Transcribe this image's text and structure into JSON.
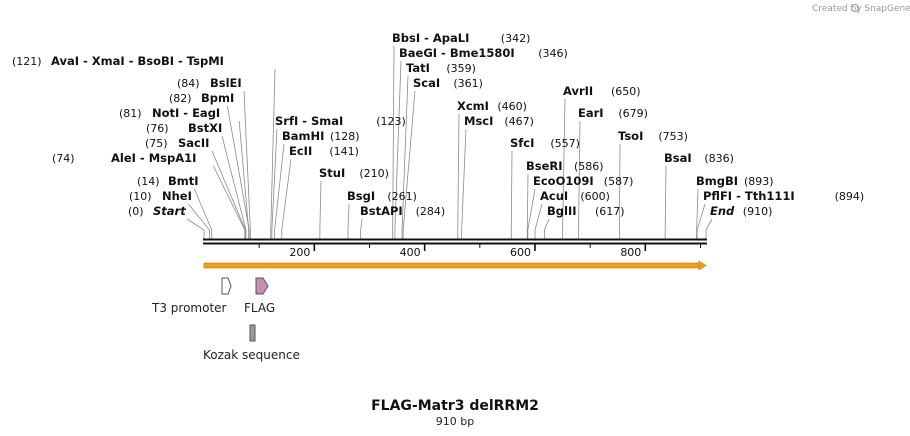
{
  "credit": "Created by SnapGene",
  "title": "FLAG-Matr3 delRRM2",
  "subtitle": "910 bp",
  "sequence_length": 910,
  "ticks": [
    "200",
    "400",
    "600",
    "800"
  ],
  "enzymes": [
    {
      "text": "AvaI  - XmaI  - BsoBI  - TspMI",
      "pos": "(121)",
      "cut": 121,
      "pos_left": true
    },
    {
      "text": "BslEI",
      "pos": "(84)",
      "cut": 84,
      "pos_left": true
    },
    {
      "text": "BpmI",
      "pos": "(82)",
      "cut": 82,
      "pos_left": true
    },
    {
      "text": "NotI  - EagI",
      "pos": "(81)",
      "cut": 81,
      "pos_left": true
    },
    {
      "text": "BstXI",
      "pos": "(76)",
      "cut": 76,
      "pos_left": true
    },
    {
      "text": "SacII",
      "pos": "(75)",
      "cut": 75,
      "pos_left": true
    },
    {
      "text": "AleI  - MspA1I",
      "pos": "(74)",
      "cut": 74,
      "pos_left": true
    },
    {
      "text": "BmtI",
      "pos": "(14)",
      "cut": 14,
      "pos_left": true
    },
    {
      "text": "NheI",
      "pos": "(10)",
      "cut": 10,
      "pos_left": true
    },
    {
      "text": "Start",
      "pos": "(0)",
      "cut": 0,
      "pos_left": true,
      "italic": true
    },
    {
      "text": "SrfI  - SmaI",
      "pos": "(123)",
      "cut": 123
    },
    {
      "text": "BamHI",
      "pos": "(128)",
      "cut": 128
    },
    {
      "text": "EcII",
      "pos": "(141)",
      "cut": 141
    },
    {
      "text": "StuI",
      "pos": "(210)",
      "cut": 210
    },
    {
      "text": "BsgI",
      "pos": "(261)",
      "cut": 261
    },
    {
      "text": "BstAPI",
      "pos": "(284)",
      "cut": 284
    },
    {
      "text": "BbsI  - ApaLI",
      "pos": "(342)",
      "cut": 342
    },
    {
      "text": "BaeGI  - Bme1580I",
      "pos": "(346)",
      "cut": 346
    },
    {
      "text": "TatI",
      "pos": "(359)",
      "cut": 359
    },
    {
      "text": "ScaI",
      "pos": "(361)",
      "cut": 361
    },
    {
      "text": "XcmI",
      "pos": "(460)",
      "cut": 460
    },
    {
      "text": "MscI",
      "pos": "(467)",
      "cut": 467
    },
    {
      "text": "SfcI",
      "pos": "(557)",
      "cut": 557
    },
    {
      "text": "BseRI",
      "pos": "(586)",
      "cut": 586
    },
    {
      "text": "EcoO109I",
      "pos": "(587)",
      "cut": 587
    },
    {
      "text": "AcuI",
      "pos": "(600)",
      "cut": 600
    },
    {
      "text": "BglII",
      "pos": "(617)",
      "cut": 617
    },
    {
      "text": "AvrII",
      "pos": "(650)",
      "cut": 650
    },
    {
      "text": "EarI",
      "pos": "(679)",
      "cut": 679
    },
    {
      "text": "TsoI",
      "pos": "(753)",
      "cut": 753
    },
    {
      "text": "BsaI",
      "pos": "(836)",
      "cut": 836
    },
    {
      "text": "BmgBI",
      "pos": "(893)",
      "cut": 893
    },
    {
      "text": "PflFI  - Tth111I",
      "pos": "(894)",
      "cut": 894
    },
    {
      "text": "End",
      "pos": "(910)",
      "cut": 910,
      "italic": true
    }
  ],
  "features": [
    {
      "name": "T3 promoter",
      "start": 33,
      "end": 50,
      "color": "#ffffff"
    },
    {
      "name": "FLAG",
      "start": 94,
      "end": 118,
      "color": "#c98fb0"
    },
    {
      "name": "Kozak sequence",
      "start": 85,
      "end": 94,
      "color": "#9a9a9a"
    }
  ],
  "orf_color": "#f0a020"
}
